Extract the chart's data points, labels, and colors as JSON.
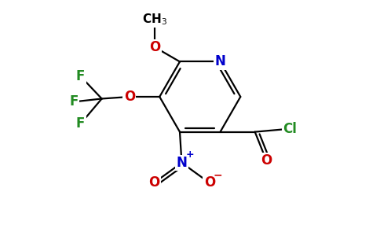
{
  "bg_color": "#ffffff",
  "atom_colors": {
    "C": "#000000",
    "N_ring": "#0000cc",
    "N_nitro": "#0000cc",
    "O": "#cc0000",
    "F": "#228b22",
    "Cl": "#228b22"
  },
  "lw": 1.6,
  "figsize": [
    4.84,
    3.0
  ],
  "dpi": 100
}
